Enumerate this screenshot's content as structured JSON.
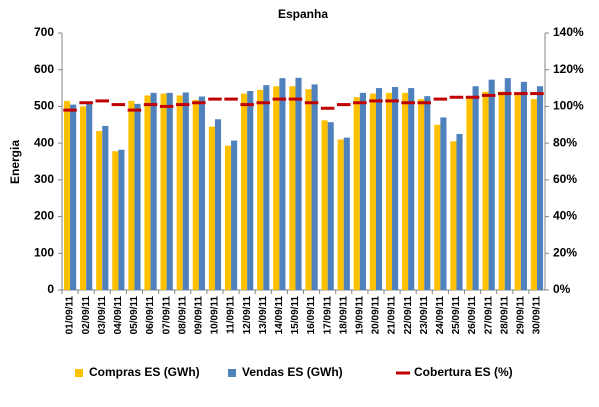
{
  "chart_data": {
    "type": "bar",
    "title": "Espanha",
    "y_label": "Energia",
    "categories": [
      "01/09/11",
      "02/09/11",
      "03/09/11",
      "04/09/11",
      "05/09/11",
      "06/09/11",
      "07/09/11",
      "08/09/11",
      "09/09/11",
      "10/09/11",
      "11/09/11",
      "12/09/11",
      "13/09/11",
      "14/09/11",
      "15/09/11",
      "16/09/11",
      "17/09/11",
      "18/09/11",
      "19/09/11",
      "20/09/11",
      "21/09/11",
      "22/09/11",
      "23/09/11",
      "24/09/11",
      "25/09/11",
      "26/09/11",
      "27/09/11",
      "28/09/11",
      "29/09/11",
      "30/09/11"
    ],
    "series": [
      {
        "name": "Compras ES (GWh)",
        "color": "#FFC000",
        "type": "bar",
        "values": [
          515,
          500,
          433,
          378,
          515,
          530,
          535,
          530,
          518,
          445,
          393,
          535,
          545,
          555,
          555,
          547,
          462,
          410,
          525,
          535,
          537,
          537,
          520,
          450,
          405,
          528,
          540,
          540,
          532,
          520
        ]
      },
      {
        "name": "Vendas ES (GWh)",
        "color": "#4F81BD",
        "type": "bar",
        "values": [
          505,
          510,
          447,
          382,
          507,
          537,
          537,
          538,
          527,
          465,
          407,
          542,
          558,
          577,
          578,
          560,
          457,
          415,
          537,
          550,
          553,
          550,
          528,
          470,
          425,
          555,
          573,
          577,
          567,
          555
        ]
      },
      {
        "name": "Cobertura ES (%)",
        "color": "#C00000",
        "type": "marker",
        "axis": "y2",
        "values": [
          98,
          102,
          103,
          101,
          98,
          101,
          100,
          101,
          102,
          104,
          104,
          101,
          102,
          104,
          104,
          102,
          99,
          101,
          102,
          103,
          103,
          102,
          102,
          104,
          105,
          105,
          106,
          107,
          107,
          107
        ]
      }
    ],
    "ylim": [
      0,
      700
    ],
    "yticks": [
      0,
      100,
      200,
      300,
      400,
      500,
      600,
      700
    ],
    "y2lim": [
      0,
      140
    ],
    "y2ticks": [
      {
        "value": 0,
        "label": "0%"
      },
      {
        "value": 20,
        "label": "20%"
      },
      {
        "value": 40,
        "label": "40%"
      },
      {
        "value": 60,
        "label": "60%"
      },
      {
        "value": 80,
        "label": "80%"
      },
      {
        "value": 100,
        "label": "100%"
      },
      {
        "value": 120,
        "label": "120%"
      },
      {
        "value": 140,
        "label": "140%"
      }
    ],
    "grid": false,
    "legend": "bottom"
  }
}
